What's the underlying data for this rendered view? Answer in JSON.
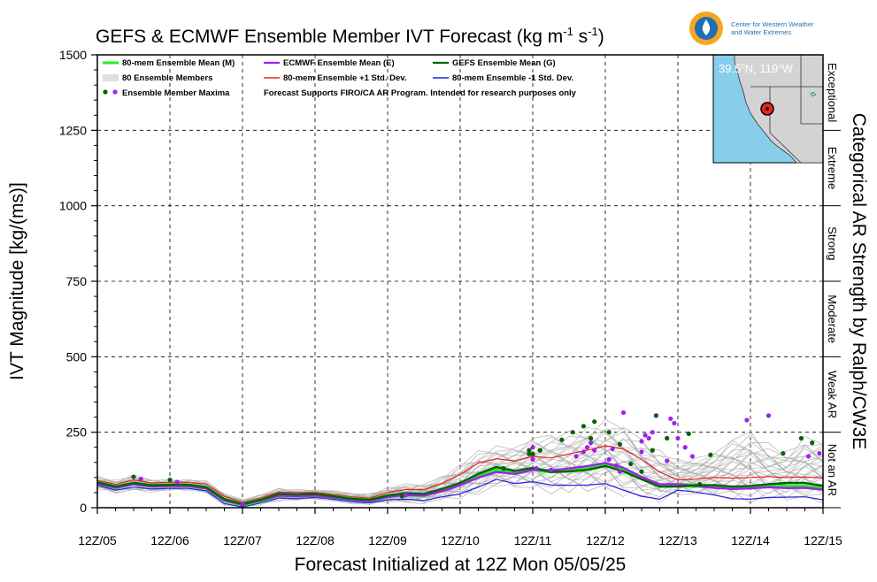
{
  "title": "GEFS & ECMWF Ensemble Member IVT Forecast (kg m-1 s-1)",
  "title_parts": {
    "main": "GEFS & ECMWF Ensemble Member IVT Forecast (kg m",
    "sup1": "-1",
    "mid": " s",
    "sup2": "-1",
    "end": ")"
  },
  "logo": {
    "line1": "Center for Western Weather",
    "line2": "and Water Extremes"
  },
  "inset_map": {
    "location": "39.5°N, 119°W",
    "location_parts": {
      "lat": "39.5",
      "lat_hem": "N, ",
      "lon": "119",
      "lon_hem": "W"
    }
  },
  "right_axis_title": "Categorical AR Strength by Ralph/CW3E",
  "categories": [
    {
      "label": "Not an AR",
      "from": 0,
      "to": 250
    },
    {
      "label": "Weak AR",
      "from": 250,
      "to": 500
    },
    {
      "label": "Moderate",
      "from": 500,
      "to": 750
    },
    {
      "label": "Strong",
      "from": 750,
      "to": 1000
    },
    {
      "label": "Extreme",
      "from": 1000,
      "to": 1250
    },
    {
      "label": "Exceptional",
      "from": 1250,
      "to": 1500
    }
  ],
  "legend": {
    "mean80": "80-mem Ensemble Mean (M)",
    "members": "80 Ensemble Members",
    "maxima": "Ensemble Member Maxima",
    "ecmwf": "ECMWF Ensemble Mean (E)",
    "plus1": "80-mem Ensemble +1 Std. Dev.",
    "minus1": "80-mem Ensemble -1 Std. Dev.",
    "gefs": "GEFS Ensemble Mean (G)",
    "disclaimer": "Forecast Supports FIRO/CA AR Program. Intended for research purposes only"
  },
  "colors": {
    "mean80": "#22ee22",
    "ecmwf": "#a020f0",
    "gefs": "#006400",
    "plus1": "#e8231e",
    "minus1": "#1f1fe6",
    "members": "#b4b4b4",
    "inset_ocean": "#87ceeb",
    "inset_land": "#d3d3d3",
    "marker": "#e8231e"
  },
  "chart_data": {
    "type": "line",
    "title": "GEFS & ECMWF Ensemble Member IVT Forecast (kg m-1 s-1)",
    "xlabel": "Forecast Initialized at 12Z Mon 05/05/25",
    "ylabel": "IVT Magnitude [kg/(ms)]",
    "xlim": [
      0,
      10
    ],
    "ylim": [
      0,
      1500
    ],
    "yticks": [
      0,
      250,
      500,
      750,
      1000,
      1250,
      1500
    ],
    "xtick_labels": [
      "12Z/05",
      "12Z/06",
      "12Z/07",
      "12Z/08",
      "12Z/09",
      "12Z/10",
      "12Z/11",
      "12Z/12",
      "12Z/13",
      "12Z/14",
      "12Z/15"
    ],
    "x_unit_note": "x in days since 12Z/05",
    "grid": true,
    "legend_position": "top-left",
    "x": [
      0,
      0.25,
      0.5,
      0.75,
      1,
      1.25,
      1.5,
      1.75,
      2,
      2.25,
      2.5,
      2.75,
      3,
      3.25,
      3.5,
      3.75,
      4,
      4.25,
      4.5,
      4.75,
      5,
      5.25,
      5.5,
      5.75,
      6,
      6.25,
      6.5,
      6.75,
      7,
      7.25,
      7.5,
      7.75,
      8,
      8.25,
      8.5,
      8.75,
      9,
      9.25,
      9.5,
      9.75,
      10
    ],
    "series": [
      {
        "name": "80-mem Ensemble +1 Std. Dev.",
        "key": "plus1",
        "values": [
          90,
          78,
          92,
          82,
          84,
          84,
          78,
          38,
          18,
          32,
          52,
          50,
          50,
          44,
          36,
          32,
          50,
          60,
          60,
          80,
          110,
          148,
          162,
          155,
          170,
          165,
          178,
          190,
          205,
          195,
          160,
          118,
          92,
          95,
          100,
          98,
          100,
          103,
          100,
          102,
          98
        ]
      },
      {
        "name": "80-mem Ensemble Mean (M)",
        "key": "mean80",
        "values": [
          82,
          68,
          80,
          72,
          74,
          74,
          66,
          26,
          10,
          24,
          42,
          40,
          42,
          36,
          28,
          24,
          38,
          44,
          42,
          58,
          78,
          108,
          128,
          115,
          128,
          120,
          126,
          132,
          142,
          125,
          98,
          72,
          74,
          73,
          70,
          65,
          68,
          72,
          70,
          70,
          62
        ]
      },
      {
        "name": "ECMWF Ensemble Mean (E)",
        "key": "ecmwf",
        "values": [
          80,
          66,
          78,
          70,
          72,
          72,
          64,
          24,
          10,
          24,
          40,
          38,
          40,
          34,
          26,
          22,
          36,
          42,
          40,
          54,
          74,
          100,
          118,
          112,
          125,
          124,
          130,
          138,
          148,
          132,
          102,
          78,
          78,
          72,
          66,
          62,
          64,
          68,
          65,
          66,
          60
        ]
      },
      {
        "name": "GEFS Ensemble Mean (G)",
        "key": "gefs",
        "values": [
          84,
          70,
          82,
          74,
          76,
          76,
          68,
          28,
          12,
          26,
          46,
          44,
          46,
          38,
          30,
          26,
          40,
          48,
          46,
          62,
          82,
          112,
          135,
          122,
          132,
          118,
          120,
          125,
          138,
          120,
          94,
          70,
          70,
          74,
          75,
          70,
          72,
          78,
          82,
          82,
          72
        ]
      },
      {
        "name": "80-mem Ensemble -1 Std. Dev.",
        "key": "minus1",
        "values": [
          74,
          58,
          68,
          62,
          64,
          64,
          56,
          14,
          2,
          16,
          32,
          30,
          34,
          28,
          20,
          16,
          26,
          28,
          24,
          36,
          46,
          68,
          94,
          80,
          86,
          75,
          74,
          75,
          80,
          58,
          38,
          28,
          58,
          52,
          42,
          30,
          28,
          34,
          35,
          36,
          26
        ]
      }
    ],
    "members_envelope": {
      "name": "80 Ensemble Members",
      "low": [
        60,
        45,
        55,
        50,
        55,
        55,
        48,
        6,
        0,
        8,
        22,
        22,
        26,
        20,
        12,
        8,
        16,
        14,
        10,
        20,
        26,
        42,
        62,
        55,
        55,
        45,
        40,
        45,
        48,
        30,
        18,
        12,
        40,
        35,
        25,
        15,
        15,
        18,
        15,
        18,
        10
      ],
      "high": [
        105,
        95,
        110,
        95,
        95,
        96,
        90,
        50,
        30,
        45,
        65,
        62,
        62,
        58,
        50,
        48,
        70,
        80,
        82,
        110,
        150,
        190,
        210,
        215,
        240,
        250,
        260,
        280,
        295,
        290,
        240,
        200,
        160,
        170,
        200,
        240,
        260,
        220,
        200,
        240,
        230
      ]
    },
    "maxima": {
      "name": "Ensemble Member Maxima",
      "gefs": [
        [
          0.5,
          102
        ],
        [
          1.0,
          92
        ],
        [
          2.0,
          10
        ],
        [
          4.2,
          38
        ],
        [
          5.6,
          130
        ],
        [
          5.95,
          178
        ],
        [
          5.95,
          190
        ],
        [
          6.0,
          178
        ],
        [
          6.1,
          190
        ],
        [
          6.4,
          225
        ],
        [
          6.55,
          250
        ],
        [
          6.7,
          270
        ],
        [
          6.8,
          230
        ],
        [
          6.85,
          285
        ],
        [
          7.05,
          250
        ],
        [
          7.2,
          210
        ],
        [
          7.35,
          145
        ],
        [
          7.5,
          120
        ],
        [
          7.65,
          190
        ],
        [
          7.7,
          305
        ],
        [
          7.85,
          230
        ],
        [
          8.45,
          175
        ],
        [
          8.15,
          245
        ],
        [
          8.3,
          78
        ],
        [
          9.45,
          180
        ],
        [
          9.7,
          230
        ],
        [
          9.85,
          215
        ]
      ],
      "ecmwf": [
        [
          0.6,
          95
        ],
        [
          1.1,
          85
        ],
        [
          2.0,
          12
        ],
        [
          4.25,
          42
        ],
        [
          6.0,
          200
        ],
        [
          6.0,
          160
        ],
        [
          6.05,
          130
        ],
        [
          6.25,
          125
        ],
        [
          6.6,
          170
        ],
        [
          6.7,
          185
        ],
        [
          6.75,
          200
        ],
        [
          6.8,
          215
        ],
        [
          6.85,
          190
        ],
        [
          7.05,
          160
        ],
        [
          7.1,
          195
        ],
        [
          7.15,
          140
        ],
        [
          7.2,
          120
        ],
        [
          7.25,
          315
        ],
        [
          7.5,
          185
        ],
        [
          7.5,
          220
        ],
        [
          7.55,
          240
        ],
        [
          7.6,
          230
        ],
        [
          7.65,
          250
        ],
        [
          7.85,
          155
        ],
        [
          7.9,
          295
        ],
        [
          7.95,
          280
        ],
        [
          8.0,
          230
        ],
        [
          8.1,
          200
        ],
        [
          8.2,
          170
        ],
        [
          8.95,
          290
        ],
        [
          9.25,
          305
        ],
        [
          9.8,
          170
        ],
        [
          9.95,
          180
        ]
      ]
    }
  }
}
